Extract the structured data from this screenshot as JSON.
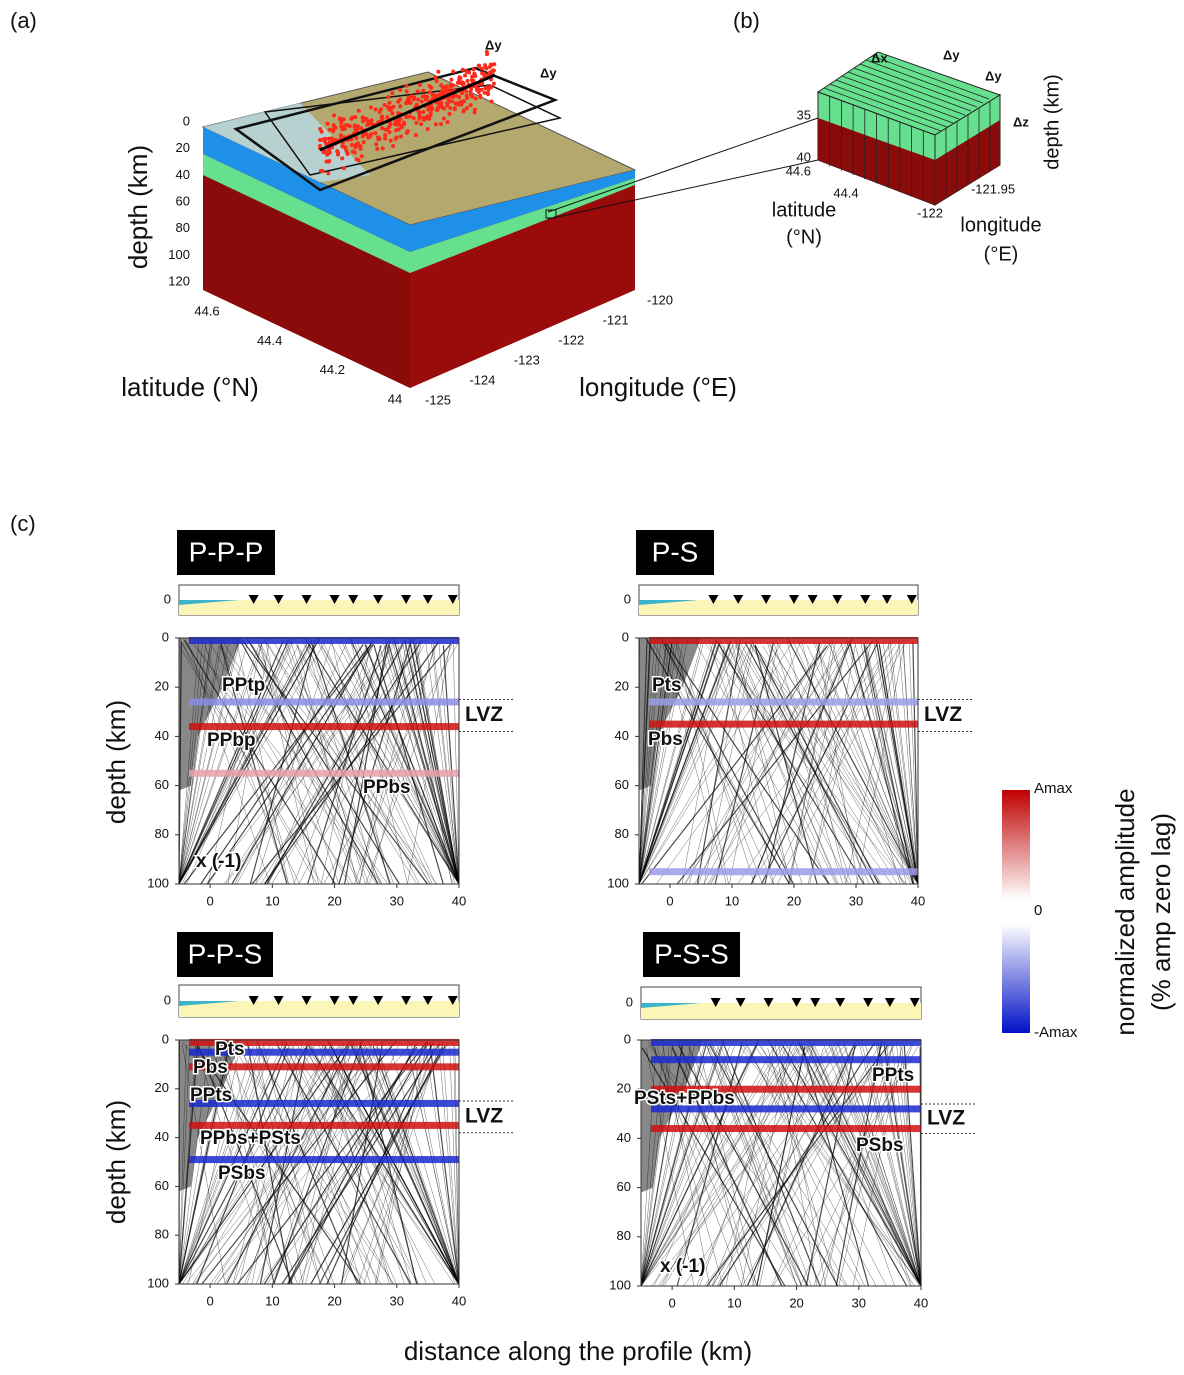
{
  "panel_a": {
    "label": "(a)",
    "delta_labels": [
      "Δy",
      "Δy"
    ],
    "depth_label": "depth (km)",
    "depth_ticks": [
      0,
      20,
      40,
      60,
      80,
      100,
      120
    ],
    "latitude_ticks": [
      44.6,
      44.4,
      44.2,
      44
    ],
    "latitude_label": "latitude (°N)",
    "longitude_ticks": [
      -120,
      -121,
      -122,
      -123,
      -124,
      -125
    ],
    "longitude_label": "longitude (°E)"
  },
  "panel_b": {
    "label": "(b)",
    "delta_labels": [
      "Δx",
      "Δy",
      "Δy",
      "Δz"
    ],
    "depth_ticks": [
      35,
      40
    ],
    "latitude_ticks": [
      44.6,
      44.4
    ],
    "longitude_ticks": [
      -122,
      -121.95
    ],
    "latitude_label": [
      "latitude",
      "(°N)"
    ],
    "longitude_label": [
      "longitude",
      "(°E)"
    ],
    "depth_label": "depth (km)"
  },
  "panel_c": {
    "label": "(c)",
    "y_label": "depth (km)",
    "x_label": "distance along the profile (km)",
    "lvz_label": "LVZ",
    "subplots": [
      {
        "title": "P-P-P",
        "phases": [
          "PPtp",
          "PPbp",
          "PPbs"
        ],
        "note": "x (-1)",
        "topo_tick": 0,
        "xlim": [
          -5,
          40
        ],
        "ylim": [
          0,
          100
        ],
        "xticks": [
          0,
          10,
          20,
          30,
          40
        ],
        "yticks": [
          0,
          20,
          40,
          60,
          80,
          100
        ],
        "lvz": [
          25,
          38
        ],
        "bands": [
          {
            "depth": 1,
            "color": "#1a2ad0"
          },
          {
            "depth": 26,
            "color": "#8a8ee8"
          },
          {
            "depth": 36,
            "color": "#d01010"
          },
          {
            "depth": 55,
            "color": "#e8a0a8"
          }
        ]
      },
      {
        "title": "P-S",
        "phases": [
          "Pts",
          "Pbs"
        ],
        "topo_tick": 0,
        "xlim": [
          -5,
          40
        ],
        "ylim": [
          0,
          100
        ],
        "xticks": [
          0,
          10,
          20,
          30,
          40
        ],
        "yticks": [
          0,
          20,
          40,
          60,
          80,
          100
        ],
        "lvz": [
          25,
          38
        ],
        "bands": [
          {
            "depth": 1,
            "color": "#d01010"
          },
          {
            "depth": 26,
            "color": "#9a9ee8"
          },
          {
            "depth": 35,
            "color": "#d01010"
          },
          {
            "depth": 95,
            "color": "#9a9ee8"
          }
        ]
      },
      {
        "title": "P-P-S",
        "phases": [
          "Pts",
          "Pbs",
          "PPts",
          "PPbs+PSts",
          "PSbs"
        ],
        "topo_tick": 0,
        "xlim": [
          -5,
          40
        ],
        "ylim": [
          0,
          100
        ],
        "xticks": [
          0,
          10,
          20,
          30,
          40
        ],
        "yticks": [
          0,
          20,
          40,
          60,
          80,
          100
        ],
        "lvz": [
          25,
          38
        ],
        "bands": [
          {
            "depth": 1,
            "color": "#d01010"
          },
          {
            "depth": 5,
            "color": "#1a2ad0"
          },
          {
            "depth": 11,
            "color": "#d01010"
          },
          {
            "depth": 26,
            "color": "#1a2ad0"
          },
          {
            "depth": 35,
            "color": "#d01010"
          },
          {
            "depth": 49,
            "color": "#1a2ad0"
          }
        ]
      },
      {
        "title": "P-S-S",
        "phases": [
          "PPts",
          "PSts+PPbs",
          "PSbs"
        ],
        "note": "x (-1)",
        "topo_tick": 0,
        "xlim": [
          -5,
          40
        ],
        "ylim": [
          0,
          100
        ],
        "xticks": [
          0,
          10,
          20,
          30,
          40
        ],
        "yticks": [
          0,
          20,
          40,
          60,
          80,
          100
        ],
        "lvz": [
          26,
          38
        ],
        "bands": [
          {
            "depth": 1,
            "color": "#1a2ad0"
          },
          {
            "depth": 8,
            "color": "#1a2ad0"
          },
          {
            "depth": 20,
            "color": "#d01010"
          },
          {
            "depth": 28,
            "color": "#1a2ad0"
          },
          {
            "depth": 36,
            "color": "#d01010"
          }
        ]
      }
    ],
    "colorbar": {
      "labels": [
        "Amax",
        "0",
        "-Amax"
      ],
      "title": [
        "normalized amplitude",
        "(% amp zero lag)"
      ]
    }
  }
}
